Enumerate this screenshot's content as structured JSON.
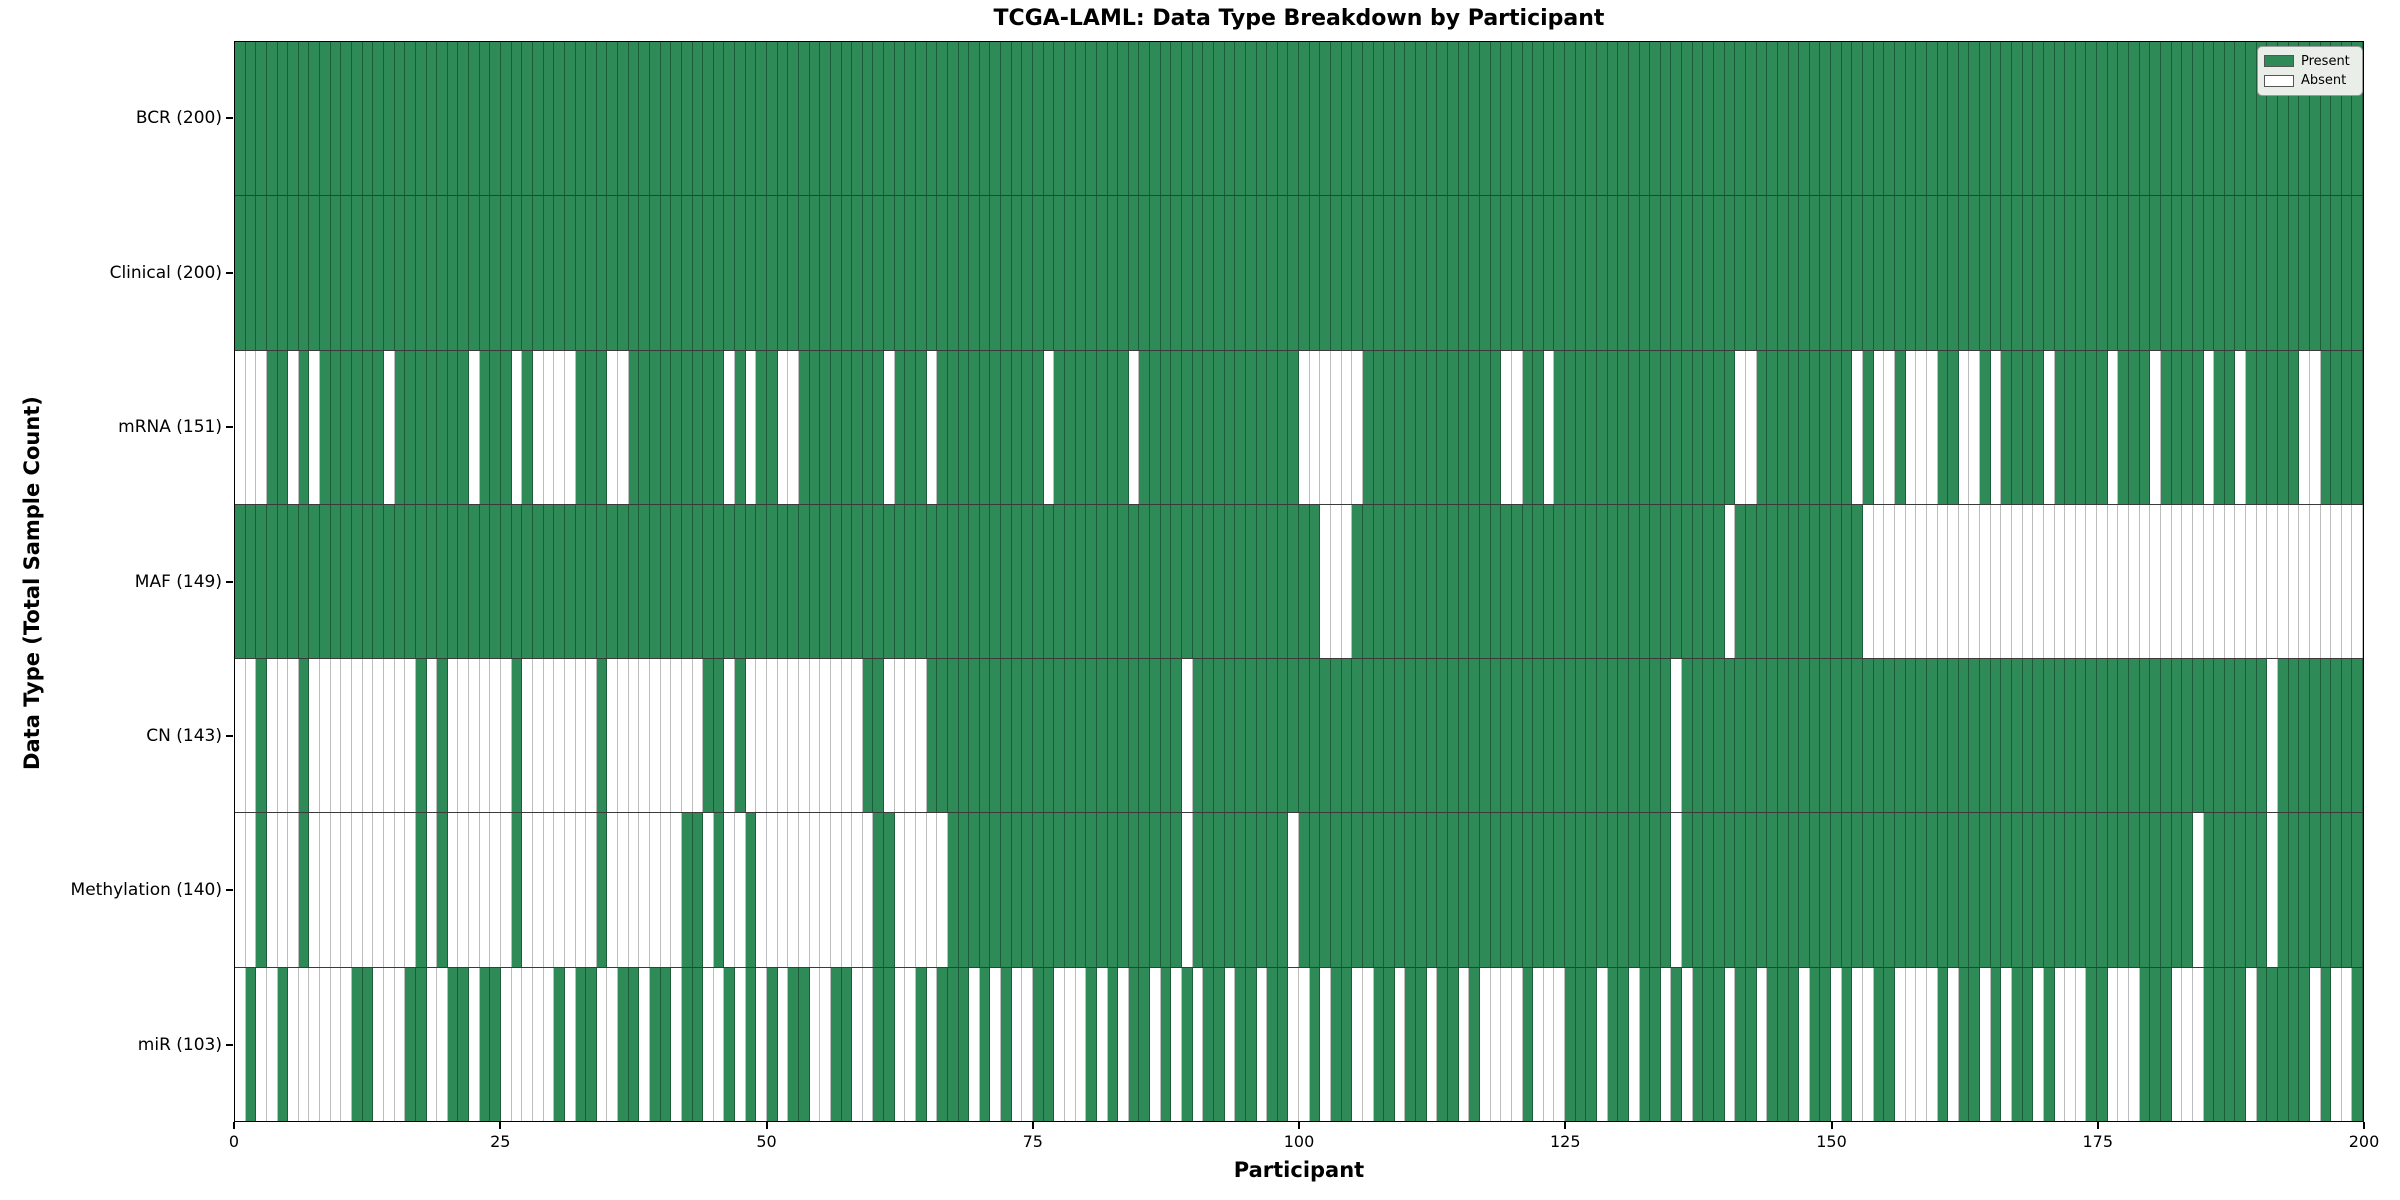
{
  "chart_data": {
    "type": "heatmap",
    "title": "TCGA-LAML: Data Type Breakdown by Participant",
    "xlabel": "Participant",
    "ylabel": "Data Type (Total Sample Count)",
    "n_participants": 200,
    "x_ticks": [
      0,
      25,
      50,
      75,
      100,
      125,
      150,
      175,
      200
    ],
    "legend": {
      "present_label": "Present",
      "absent_label": "Absent",
      "position": "upper right"
    },
    "colors": {
      "present": "#2E8B57",
      "absent": "#ffffff"
    },
    "value_encoding": "1 = data present (green), 0 = data absent (white); rows list absent participant indices",
    "rows": [
      {
        "label": "BCR (200)",
        "data_type": "BCR",
        "present_count": 200,
        "absent": []
      },
      {
        "label": "Clinical (200)",
        "data_type": "Clinical",
        "present_count": 200,
        "absent": []
      },
      {
        "label": "mRNA (151)",
        "data_type": "mRNA",
        "present_count": 151,
        "absent": [
          0,
          1,
          2,
          5,
          7,
          14,
          22,
          26,
          28,
          29,
          30,
          31,
          35,
          36,
          46,
          48,
          51,
          52,
          61,
          65,
          76,
          84,
          100,
          101,
          102,
          103,
          104,
          105,
          119,
          120,
          123,
          141,
          142,
          152,
          154,
          155,
          157,
          158,
          159,
          162,
          163,
          165,
          170,
          176,
          180,
          185,
          188,
          194,
          195
        ]
      },
      {
        "label": "MAF (149)",
        "data_type": "MAF",
        "present_count": 149,
        "absent": [
          102,
          103,
          104,
          140,
          153,
          154,
          155,
          156,
          157,
          158,
          159,
          160,
          161,
          162,
          163,
          164,
          165,
          166,
          167,
          168,
          169,
          170,
          171,
          172,
          173,
          174,
          175,
          176,
          177,
          178,
          179,
          180,
          181,
          182,
          183,
          184,
          185,
          186,
          187,
          188,
          189,
          190,
          191,
          192,
          193,
          194,
          195,
          196,
          197,
          198,
          199
        ]
      },
      {
        "label": "CN (143)",
        "data_type": "CN",
        "present_count": 143,
        "absent": [
          0,
          1,
          3,
          4,
          5,
          7,
          8,
          9,
          10,
          11,
          12,
          13,
          14,
          15,
          16,
          18,
          20,
          21,
          22,
          23,
          24,
          25,
          27,
          28,
          29,
          30,
          31,
          32,
          33,
          35,
          36,
          37,
          38,
          39,
          40,
          41,
          42,
          43,
          46,
          48,
          49,
          50,
          51,
          52,
          53,
          54,
          55,
          56,
          57,
          58,
          61,
          62,
          63,
          64,
          89,
          135,
          191
        ]
      },
      {
        "label": "Methylation (140)",
        "data_type": "Methylation",
        "present_count": 140,
        "absent": [
          0,
          1,
          3,
          4,
          5,
          7,
          8,
          9,
          10,
          11,
          12,
          13,
          14,
          15,
          16,
          18,
          20,
          21,
          22,
          23,
          24,
          25,
          27,
          28,
          29,
          30,
          31,
          32,
          33,
          35,
          36,
          37,
          38,
          39,
          40,
          41,
          44,
          46,
          47,
          49,
          50,
          51,
          52,
          53,
          54,
          55,
          56,
          57,
          58,
          59,
          62,
          63,
          64,
          65,
          66,
          89,
          99,
          135,
          184,
          191
        ]
      },
      {
        "label": "miR (103)",
        "data_type": "miR",
        "present_count": 103,
        "absent": [
          0,
          2,
          3,
          5,
          6,
          7,
          8,
          9,
          10,
          13,
          14,
          15,
          18,
          19,
          22,
          25,
          26,
          27,
          28,
          29,
          31,
          34,
          35,
          38,
          41,
          44,
          45,
          47,
          49,
          51,
          54,
          55,
          58,
          59,
          62,
          63,
          65,
          69,
          71,
          73,
          74,
          77,
          78,
          79,
          81,
          83,
          86,
          88,
          90,
          93,
          96,
          99,
          100,
          102,
          105,
          106,
          109,
          112,
          115,
          117,
          118,
          119,
          120,
          122,
          123,
          124,
          128,
          131,
          134,
          136,
          140,
          143,
          147,
          150,
          152,
          153,
          156,
          157,
          158,
          159,
          161,
          164,
          166,
          169,
          171,
          172,
          173,
          176,
          177,
          178,
          182,
          183,
          184,
          189,
          195,
          197,
          198
        ]
      }
    ]
  }
}
